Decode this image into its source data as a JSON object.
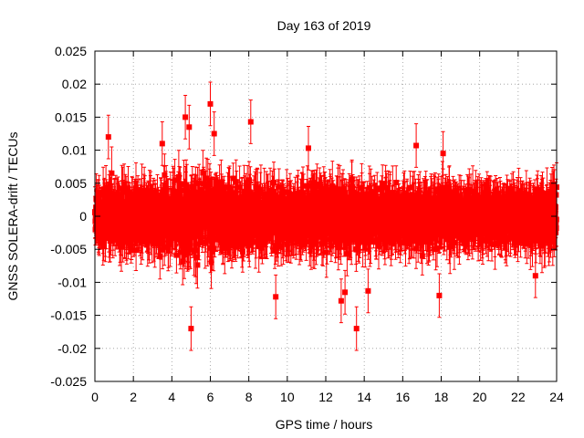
{
  "chart_data": {
    "type": "scatter",
    "title": "Day 163 of 2019",
    "xlabel": "GPS time / hours",
    "ylabel": "GNSS SOLERA-drift / TECUs",
    "xlim": [
      0,
      24
    ],
    "ylim": [
      -0.025,
      0.025
    ],
    "grid": true,
    "x_ticks": [
      0,
      2,
      4,
      6,
      8,
      10,
      12,
      14,
      16,
      18,
      20,
      22,
      24
    ],
    "y_ticks": [
      -0.025,
      -0.02,
      -0.015,
      -0.01,
      -0.005,
      0,
      0.005,
      0.01,
      0.015,
      0.02,
      0.025
    ],
    "x_tick_labels": [
      "0",
      "2",
      "4",
      "6",
      "8",
      "10",
      "12",
      "14",
      "16",
      "18",
      "20",
      "22",
      "24"
    ],
    "y_tick_labels": [
      "-0.025",
      "-0.02",
      "-0.015",
      "-0.01",
      "-0.005",
      "0",
      "0.005",
      "0.01",
      "0.015",
      "0.02",
      "0.025"
    ],
    "series": [
      {
        "name": "SOLERA drift",
        "color": "#ff0000",
        "marker": "square",
        "error_bars": true,
        "sampling_interval_hours": 0.00833,
        "typical_stddev": 0.0035,
        "typical_error": 0.003,
        "highlighted_points": [
          {
            "x": 0.7,
            "y": 0.012
          },
          {
            "x": 3.5,
            "y": 0.011
          },
          {
            "x": 4.7,
            "y": 0.015
          },
          {
            "x": 4.9,
            "y": 0.0135
          },
          {
            "x": 5.0,
            "y": -0.017
          },
          {
            "x": 6.0,
            "y": 0.017
          },
          {
            "x": 6.2,
            "y": 0.0125
          },
          {
            "x": 8.1,
            "y": 0.0143
          },
          {
            "x": 9.4,
            "y": -0.0122
          },
          {
            "x": 11.1,
            "y": 0.0103
          },
          {
            "x": 12.8,
            "y": -0.0128
          },
          {
            "x": 13.0,
            "y": -0.0115
          },
          {
            "x": 13.6,
            "y": -0.017
          },
          {
            "x": 14.2,
            "y": -0.0113
          },
          {
            "x": 16.7,
            "y": 0.0107
          },
          {
            "x": 17.9,
            "y": -0.012
          },
          {
            "x": 18.1,
            "y": 0.0095
          },
          {
            "x": 22.9,
            "y": -0.009
          }
        ]
      }
    ]
  }
}
